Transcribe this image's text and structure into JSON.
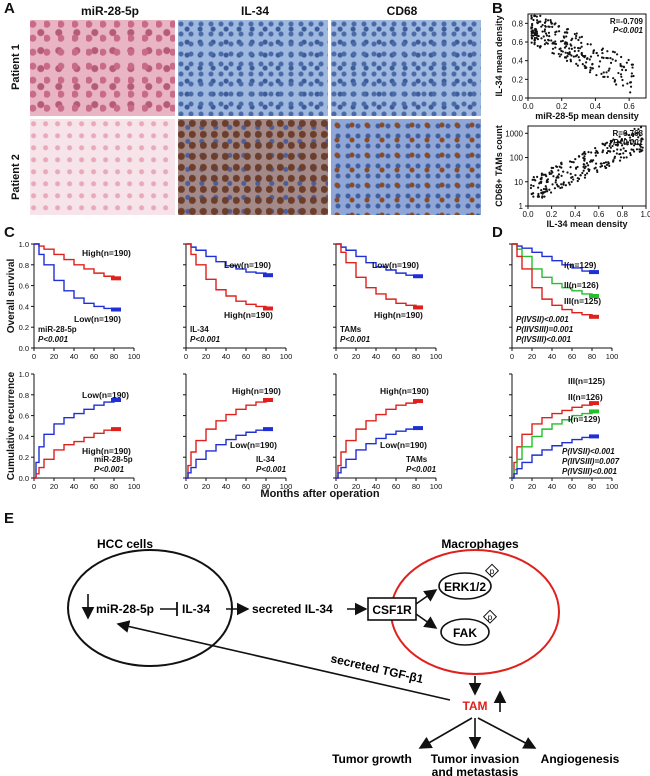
{
  "panel_letters": {
    "a": "A",
    "b": "B",
    "c": "C",
    "d": "D",
    "e": "E"
  },
  "panel_a": {
    "columns": [
      "miR-28-5p",
      "IL-34",
      "CD68"
    ],
    "rows": [
      "Patient 1",
      "Patient 2"
    ]
  },
  "colors": {
    "high": "#e0201c",
    "low": "#1f2fd6",
    "mid": "#22c02a",
    "cell_circle": "#111111",
    "macrophage_circle": "#e0201c",
    "tam": "#e0201c"
  },
  "chart_data": [
    {
      "type": "scatter",
      "panel": "B-top",
      "xlabel": "miR-28-5p mean density",
      "ylabel": "IL-34 mean density",
      "xlim": [
        0,
        0.7
      ],
      "ylim": [
        0,
        0.9
      ],
      "xticks": [
        "0.0",
        "0.2",
        "0.4",
        "0.6"
      ],
      "yticks": [
        "0.0",
        "0.2",
        "0.4",
        "0.6",
        "0.8"
      ],
      "annotations": [
        "R=-0.709",
        "P<0.001"
      ]
    },
    {
      "type": "scatter",
      "panel": "B-bottom",
      "xlabel": "IL-34 mean density",
      "ylabel": "CD68+ TAMs count",
      "y_scale": "log",
      "xlim": [
        0,
        1.0
      ],
      "ylim": [
        1,
        2000
      ],
      "xticks": [
        "0.0",
        "0.2",
        "0.4",
        "0.6",
        "0.8",
        "1.0"
      ],
      "yticks": [
        "1",
        "10",
        "100",
        "1000"
      ],
      "annotations": [
        "R=0.768",
        "P<0.001"
      ]
    },
    {
      "type": "line",
      "panel": "C-os-mir",
      "kind": "survival",
      "x_ticks": [
        "0",
        "20",
        "40",
        "60",
        "80",
        "100"
      ],
      "y_ticks": [
        "0.0",
        "0.2",
        "0.4",
        "0.6",
        "0.8",
        "1.0"
      ],
      "labels": [
        "High(n=190)",
        "Low(n=190)"
      ],
      "text": [
        "miR-28-5p",
        "P<0.001"
      ],
      "series": [
        {
          "name": "High(n=190)",
          "color": "#e0201c",
          "x": [
            0,
            5,
            10,
            20,
            30,
            40,
            50,
            60,
            70,
            80,
            85
          ],
          "y": [
            1.0,
            0.98,
            0.95,
            0.9,
            0.85,
            0.8,
            0.76,
            0.72,
            0.69,
            0.67,
            0.67
          ]
        },
        {
          "name": "Low(n=190)",
          "color": "#1f2fd6",
          "x": [
            0,
            5,
            10,
            20,
            30,
            40,
            50,
            60,
            70,
            80,
            85
          ],
          "y": [
            1.0,
            0.9,
            0.8,
            0.65,
            0.55,
            0.48,
            0.43,
            0.4,
            0.38,
            0.37,
            0.37
          ]
        }
      ]
    },
    {
      "type": "line",
      "panel": "C-os-il34",
      "kind": "survival",
      "x_ticks": [
        "0",
        "20",
        "40",
        "60",
        "80",
        "100"
      ],
      "y_ticks": [],
      "labels": [
        "Low(n=190)",
        "High(n=190)"
      ],
      "text": [
        "IL-34",
        "P<0.001"
      ],
      "series": [
        {
          "name": "Low(n=190)",
          "color": "#1f2fd6",
          "x": [
            0,
            5,
            10,
            20,
            30,
            40,
            50,
            60,
            70,
            80,
            85
          ],
          "y": [
            1.0,
            0.97,
            0.94,
            0.88,
            0.83,
            0.79,
            0.76,
            0.73,
            0.72,
            0.7,
            0.7
          ]
        },
        {
          "name": "High(n=190)",
          "color": "#e0201c",
          "x": [
            0,
            5,
            10,
            20,
            30,
            40,
            50,
            60,
            70,
            80,
            85
          ],
          "y": [
            1.0,
            0.9,
            0.8,
            0.66,
            0.56,
            0.5,
            0.45,
            0.42,
            0.4,
            0.38,
            0.38
          ]
        }
      ]
    },
    {
      "type": "line",
      "panel": "C-os-tam",
      "kind": "survival",
      "x_ticks": [
        "0",
        "20",
        "40",
        "60",
        "80",
        "100"
      ],
      "y_ticks": [],
      "labels": [
        "Low(n=190)",
        "High(n=190)"
      ],
      "text": [
        "TAMs",
        "P<0.001"
      ],
      "series": [
        {
          "name": "Low(n=190)",
          "color": "#1f2fd6",
          "x": [
            0,
            5,
            10,
            20,
            30,
            40,
            50,
            60,
            70,
            80,
            85
          ],
          "y": [
            1.0,
            0.97,
            0.94,
            0.88,
            0.82,
            0.78,
            0.75,
            0.72,
            0.7,
            0.69,
            0.69
          ]
        },
        {
          "name": "High(n=190)",
          "color": "#e0201c",
          "x": [
            0,
            5,
            10,
            20,
            30,
            40,
            50,
            60,
            70,
            80,
            85
          ],
          "y": [
            1.0,
            0.92,
            0.82,
            0.68,
            0.58,
            0.52,
            0.47,
            0.43,
            0.41,
            0.39,
            0.39
          ]
        }
      ]
    },
    {
      "type": "line",
      "panel": "D-os",
      "kind": "survival",
      "x_ticks": [
        "0",
        "20",
        "40",
        "60",
        "80",
        "100"
      ],
      "y_ticks": [],
      "labels": [
        "I(n=129)",
        "II(n=126)",
        "III(n=125)"
      ],
      "text": [
        "P(IVSII)<0.001",
        "P(IIVSIII)=0.001",
        "P(IVSIII)<0.001"
      ],
      "series": [
        {
          "name": "I(n=129)",
          "color": "#1f2fd6",
          "x": [
            0,
            5,
            10,
            20,
            30,
            40,
            50,
            60,
            70,
            80,
            85
          ],
          "y": [
            1.0,
            0.98,
            0.96,
            0.92,
            0.88,
            0.84,
            0.8,
            0.77,
            0.74,
            0.73,
            0.73
          ]
        },
        {
          "name": "II(n=126)",
          "color": "#22c02a",
          "x": [
            0,
            5,
            10,
            20,
            30,
            40,
            50,
            60,
            70,
            80,
            85
          ],
          "y": [
            1.0,
            0.95,
            0.88,
            0.76,
            0.68,
            0.62,
            0.58,
            0.55,
            0.52,
            0.5,
            0.5
          ]
        },
        {
          "name": "III(n=125)",
          "color": "#e0201c",
          "x": [
            0,
            5,
            10,
            20,
            30,
            40,
            50,
            60,
            70,
            80,
            85
          ],
          "y": [
            1.0,
            0.88,
            0.76,
            0.58,
            0.47,
            0.41,
            0.37,
            0.34,
            0.32,
            0.3,
            0.3
          ]
        }
      ]
    },
    {
      "type": "line",
      "panel": "C-rec-mir",
      "kind": "recurrence",
      "x_ticks": [
        "0",
        "20",
        "40",
        "60",
        "80",
        "100"
      ],
      "y_ticks": [
        "0.0",
        "0.2",
        "0.4",
        "0.6",
        "0.8",
        "1.0"
      ],
      "labels": [
        "Low(n=190)",
        "High(n=190)"
      ],
      "text": [
        "miR-28-5p",
        "P<0.001"
      ],
      "series": [
        {
          "name": "Low(n=190)",
          "color": "#1f2fd6",
          "x": [
            0,
            2,
            5,
            10,
            20,
            30,
            40,
            50,
            60,
            70,
            80,
            85
          ],
          "y": [
            0,
            0.15,
            0.3,
            0.42,
            0.52,
            0.58,
            0.62,
            0.66,
            0.7,
            0.73,
            0.75,
            0.75
          ]
        },
        {
          "name": "High(n=190)",
          "color": "#e0201c",
          "x": [
            0,
            2,
            5,
            10,
            20,
            30,
            40,
            50,
            60,
            70,
            80,
            85
          ],
          "y": [
            0,
            0.04,
            0.1,
            0.18,
            0.27,
            0.32,
            0.35,
            0.39,
            0.43,
            0.46,
            0.47,
            0.47
          ]
        }
      ]
    },
    {
      "type": "line",
      "panel": "C-rec-il34",
      "kind": "recurrence",
      "x_ticks": [
        "0",
        "20",
        "40",
        "60",
        "80",
        "100"
      ],
      "y_ticks": [],
      "labels": [
        "High(n=190)",
        "Low(n=190)"
      ],
      "text": [
        "IL-34",
        "P<0.001"
      ],
      "series": [
        {
          "name": "High(n=190)",
          "color": "#e0201c",
          "x": [
            0,
            2,
            5,
            10,
            20,
            30,
            40,
            50,
            60,
            70,
            80,
            85
          ],
          "y": [
            0,
            0.12,
            0.25,
            0.36,
            0.47,
            0.55,
            0.61,
            0.66,
            0.7,
            0.73,
            0.75,
            0.75
          ]
        },
        {
          "name": "Low(n=190)",
          "color": "#1f2fd6",
          "x": [
            0,
            2,
            5,
            10,
            20,
            30,
            40,
            50,
            60,
            70,
            80,
            85
          ],
          "y": [
            0,
            0.05,
            0.1,
            0.18,
            0.26,
            0.32,
            0.37,
            0.41,
            0.44,
            0.46,
            0.47,
            0.47
          ]
        }
      ]
    },
    {
      "type": "line",
      "panel": "C-rec-tam",
      "kind": "recurrence",
      "x_ticks": [
        "0",
        "20",
        "40",
        "60",
        "80",
        "100"
      ],
      "y_ticks": [],
      "labels": [
        "High(n=190)",
        "Low(n=190)"
      ],
      "text": [
        "TAMs",
        "P<0.001"
      ],
      "series": [
        {
          "name": "High(n=190)",
          "color": "#e0201c",
          "x": [
            0,
            2,
            5,
            10,
            20,
            30,
            40,
            50,
            60,
            70,
            80,
            85
          ],
          "y": [
            0,
            0.12,
            0.25,
            0.36,
            0.47,
            0.55,
            0.61,
            0.66,
            0.7,
            0.72,
            0.74,
            0.74
          ]
        },
        {
          "name": "Low(n=190)",
          "color": "#1f2fd6",
          "x": [
            0,
            2,
            5,
            10,
            20,
            30,
            40,
            50,
            60,
            70,
            80,
            85
          ],
          "y": [
            0,
            0.05,
            0.1,
            0.18,
            0.27,
            0.33,
            0.38,
            0.42,
            0.45,
            0.47,
            0.48,
            0.48
          ]
        }
      ]
    },
    {
      "type": "line",
      "panel": "D-rec",
      "kind": "recurrence",
      "x_ticks": [
        "0",
        "20",
        "40",
        "60",
        "80",
        "100"
      ],
      "y_ticks": [],
      "labels": [
        "III(n=125)",
        "II(n=126)",
        "I(n=129)"
      ],
      "text": [
        "P(IVSII)<0.001",
        "P(IIVSIII)=0.007",
        "P(IVSIII)<0.001"
      ],
      "series": [
        {
          "name": "III(n=125)",
          "color": "#e0201c",
          "x": [
            0,
            2,
            5,
            10,
            20,
            30,
            40,
            50,
            60,
            70,
            80,
            85
          ],
          "y": [
            0,
            0.15,
            0.3,
            0.42,
            0.52,
            0.58,
            0.62,
            0.65,
            0.68,
            0.7,
            0.72,
            0.72
          ]
        },
        {
          "name": "II(n=126)",
          "color": "#22c02a",
          "x": [
            0,
            2,
            5,
            10,
            20,
            30,
            40,
            50,
            60,
            70,
            80,
            85
          ],
          "y": [
            0,
            0.08,
            0.18,
            0.3,
            0.4,
            0.47,
            0.52,
            0.56,
            0.6,
            0.62,
            0.64,
            0.64
          ]
        },
        {
          "name": "I(n=129)",
          "color": "#1f2fd6",
          "x": [
            0,
            2,
            5,
            10,
            20,
            30,
            40,
            50,
            60,
            70,
            80,
            85
          ],
          "y": [
            0,
            0.04,
            0.09,
            0.15,
            0.22,
            0.27,
            0.31,
            0.34,
            0.37,
            0.39,
            0.4,
            0.4
          ]
        }
      ]
    }
  ],
  "panel_c_axis": {
    "os_ylabel": "Overall survival",
    "rec_ylabel": "Cumulative recurrence",
    "xlabel": "Months after operation"
  },
  "diagram": {
    "hcc_title": "HCC cells",
    "mac_title": "Macrophages",
    "mir": "miR-28-5p",
    "il34": "IL-34",
    "secreted_il34": "secreted IL-34",
    "csf1r": "CSF1R",
    "erk": "ERK1/2",
    "fak": "FAK",
    "phospho": "p",
    "tgf": "secreted TGF-β1",
    "tam": "TAM",
    "outcome_1": "Tumor growth",
    "outcome_2a": "Tumor invasion",
    "outcome_2b": "and metastasis",
    "outcome_3": "Angiogenesis"
  }
}
